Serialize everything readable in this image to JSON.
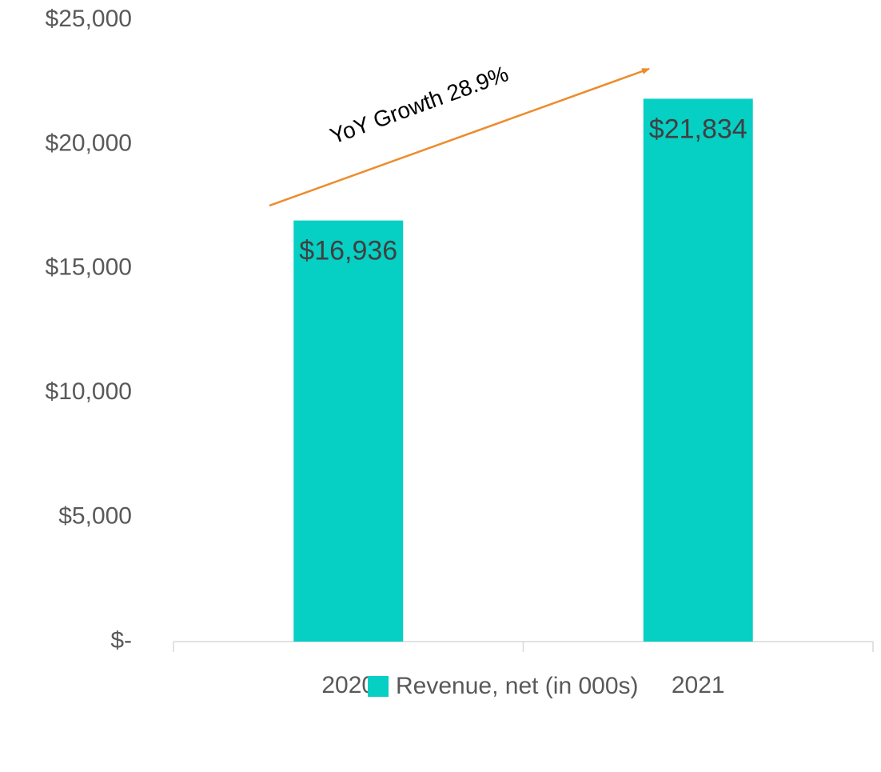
{
  "chart_data": {
    "type": "bar",
    "categories": [
      "2020",
      "2021"
    ],
    "series": [
      {
        "name": "Revenue, net (in 000s)",
        "color": "#06cfc4",
        "values": [
          16936,
          21834
        ],
        "value_labels": [
          "$16,936",
          "$21,834"
        ]
      }
    ],
    "ylim": [
      0,
      25000
    ],
    "yticks": [
      {
        "value": 0,
        "label": "$-"
      },
      {
        "value": 5000,
        "label": "$5,000"
      },
      {
        "value": 10000,
        "label": "$10,000"
      },
      {
        "value": 15000,
        "label": "$15,000"
      },
      {
        "value": 20000,
        "label": "$20,000"
      },
      {
        "value": 25000,
        "label": "$25,000"
      }
    ],
    "annotations": [
      "YoY Growth 28.9%"
    ],
    "legend": "bottom"
  }
}
